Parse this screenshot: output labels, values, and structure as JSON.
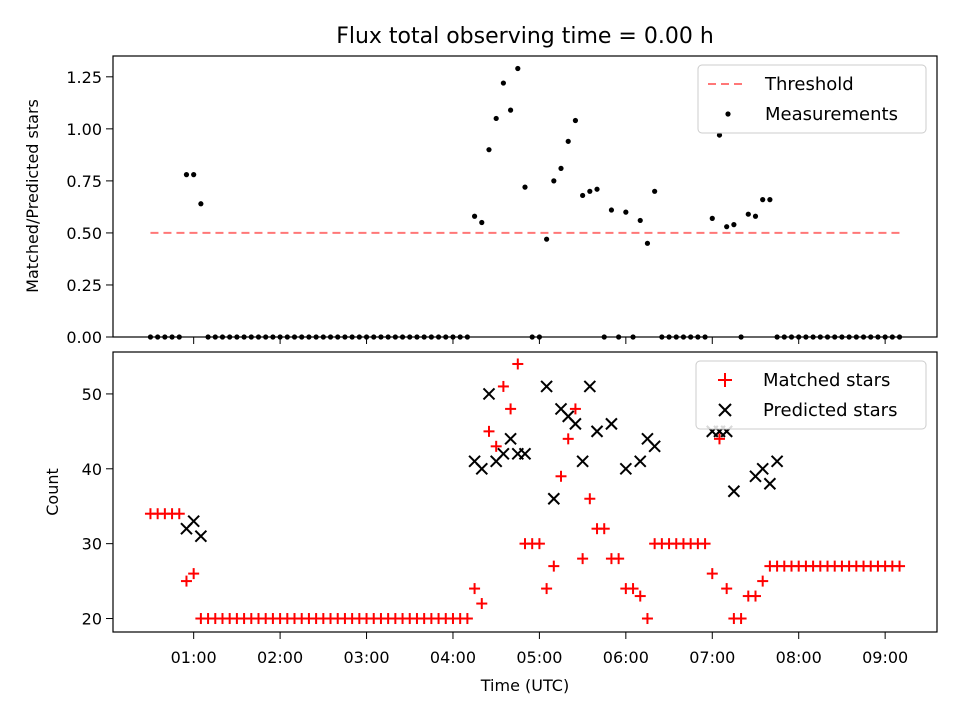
{
  "chart_data": [
    {
      "type": "scatter",
      "title": "Flux total observing time = 0.00 h",
      "xlabel": "",
      "ylabel": "Matched/Predicted stars",
      "ylim": [
        0,
        1.35
      ],
      "yticks": [
        "0.00",
        "0.25",
        "0.50",
        "0.75",
        "1.00",
        "1.25"
      ],
      "grid": false,
      "legend_position": "top-right",
      "series": [
        {
          "name": "Threshold",
          "style": "dashed-line",
          "color": "#ff7777",
          "x": [
            "00:30",
            "09:10"
          ],
          "y": [
            0.5,
            0.5
          ]
        },
        {
          "name": "Measurements",
          "style": "dot",
          "color": "#000000",
          "x": [
            "00:30",
            "00:35",
            "00:40",
            "00:45",
            "00:50",
            "00:55",
            "01:00",
            "01:05",
            "01:10",
            "01:15",
            "01:20",
            "01:25",
            "01:30",
            "01:35",
            "01:40",
            "01:45",
            "01:50",
            "01:55",
            "02:00",
            "02:05",
            "02:10",
            "02:15",
            "02:20",
            "02:25",
            "02:30",
            "02:35",
            "02:40",
            "02:45",
            "02:50",
            "02:55",
            "03:00",
            "03:05",
            "03:10",
            "03:15",
            "03:20",
            "03:25",
            "03:30",
            "03:35",
            "03:40",
            "03:45",
            "03:50",
            "03:55",
            "04:00",
            "04:05",
            "04:10",
            "04:15",
            "04:20",
            "04:25",
            "04:30",
            "04:35",
            "04:40",
            "04:45",
            "04:50",
            "04:55",
            "05:00",
            "05:05",
            "05:10",
            "05:15",
            "05:20",
            "05:25",
            "05:30",
            "05:35",
            "05:40",
            "05:45",
            "05:50",
            "05:55",
            "06:00",
            "06:05",
            "06:10",
            "06:15",
            "06:20",
            "06:25",
            "06:30",
            "06:35",
            "06:40",
            "06:45",
            "06:50",
            "06:55",
            "07:00",
            "07:05",
            "07:10",
            "07:15",
            "07:20",
            "07:25",
            "07:30",
            "07:35",
            "07:40",
            "07:45",
            "07:50",
            "07:55",
            "08:00",
            "08:05",
            "08:10",
            "08:15",
            "08:20",
            "08:25",
            "08:30",
            "08:35",
            "08:40",
            "08:45",
            "08:50",
            "08:55",
            "09:00",
            "09:05",
            "09:10"
          ],
          "y": [
            0,
            0,
            0,
            0,
            0,
            0.78,
            0.78,
            0.64,
            0,
            0,
            0,
            0,
            0,
            0,
            0,
            0,
            0,
            0,
            0,
            0,
            0,
            0,
            0,
            0,
            0,
            0,
            0,
            0,
            0,
            0,
            0,
            0,
            0,
            0,
            0,
            0,
            0,
            0,
            0,
            0,
            0,
            0,
            0,
            0,
            0,
            0.58,
            0.55,
            0.9,
            1.05,
            1.22,
            1.09,
            1.29,
            0.72,
            0,
            0,
            0.47,
            0.75,
            0.81,
            0.94,
            1.04,
            0.68,
            0.7,
            0.71,
            0,
            0.61,
            0,
            0.6,
            0,
            0.56,
            0.45,
            0.7,
            0,
            0,
            0,
            0,
            0,
            0,
            0,
            0.57,
            0.97,
            0.53,
            0.54,
            0,
            0.59,
            0.58,
            0.66,
            0.66,
            0,
            0,
            0,
            0,
            0,
            0,
            0,
            0,
            0,
            0,
            0,
            0,
            0,
            0,
            0,
            0,
            0,
            0
          ]
        }
      ]
    },
    {
      "type": "scatter",
      "title": "",
      "xlabel": "Time (UTC)",
      "ylabel": "Count",
      "ylim": [
        18.2,
        55.6
      ],
      "yticks": [
        "20",
        "30",
        "40",
        "50"
      ],
      "xticks": [
        "01:00",
        "02:00",
        "03:00",
        "04:00",
        "05:00",
        "06:00",
        "07:00",
        "08:00",
        "09:00"
      ],
      "grid": false,
      "legend_position": "top-right",
      "series": [
        {
          "name": "Matched stars",
          "style": "plus",
          "color": "#ff0000",
          "x": [
            "00:30",
            "00:35",
            "00:40",
            "00:45",
            "00:50",
            "00:55",
            "01:00",
            "01:05",
            "01:10",
            "01:15",
            "01:20",
            "01:25",
            "01:30",
            "01:35",
            "01:40",
            "01:45",
            "01:50",
            "01:55",
            "02:00",
            "02:05",
            "02:10",
            "02:15",
            "02:20",
            "02:25",
            "02:30",
            "02:35",
            "02:40",
            "02:45",
            "02:50",
            "02:55",
            "03:00",
            "03:05",
            "03:10",
            "03:15",
            "03:20",
            "03:25",
            "03:30",
            "03:35",
            "03:40",
            "03:45",
            "03:50",
            "03:55",
            "04:00",
            "04:05",
            "04:10",
            "04:15",
            "04:20",
            "04:25",
            "04:30",
            "04:35",
            "04:40",
            "04:45",
            "04:50",
            "04:55",
            "05:00",
            "05:05",
            "05:10",
            "05:15",
            "05:20",
            "05:25",
            "05:30",
            "05:35",
            "05:40",
            "05:45",
            "05:50",
            "05:55",
            "06:00",
            "06:05",
            "06:10",
            "06:15",
            "06:20",
            "06:25",
            "06:30",
            "06:35",
            "06:40",
            "06:45",
            "06:50",
            "06:55",
            "07:00",
            "07:05",
            "07:10",
            "07:15",
            "07:20",
            "07:25",
            "07:30",
            "07:35",
            "07:40",
            "07:45",
            "07:50",
            "07:55",
            "08:00",
            "08:05",
            "08:10",
            "08:15",
            "08:20",
            "08:25",
            "08:30",
            "08:35",
            "08:40",
            "08:45",
            "08:50",
            "08:55",
            "09:00",
            "09:05",
            "09:10"
          ],
          "y": [
            34,
            34,
            34,
            34,
            34,
            25,
            26,
            20,
            20,
            20,
            20,
            20,
            20,
            20,
            20,
            20,
            20,
            20,
            20,
            20,
            20,
            20,
            20,
            20,
            20,
            20,
            20,
            20,
            20,
            20,
            20,
            20,
            20,
            20,
            20,
            20,
            20,
            20,
            20,
            20,
            20,
            20,
            20,
            20,
            20,
            24,
            22,
            45,
            43,
            51,
            48,
            54,
            30,
            30,
            30,
            24,
            27,
            39,
            44,
            48,
            28,
            36,
            32,
            32,
            28,
            28,
            24,
            24,
            23,
            20,
            30,
            30,
            30,
            30,
            30,
            30,
            30,
            30,
            26,
            44,
            24,
            20,
            20,
            23,
            23,
            25,
            27,
            27,
            27,
            27,
            27,
            27,
            27,
            27,
            27,
            27,
            27,
            27,
            27,
            27,
            27,
            27,
            27,
            27,
            27
          ]
        },
        {
          "name": "Predicted stars",
          "style": "x",
          "color": "#000000",
          "x": [
            "00:55",
            "01:00",
            "01:05",
            "04:15",
            "04:20",
            "04:25",
            "04:30",
            "04:35",
            "04:40",
            "04:45",
            "04:50",
            "05:05",
            "05:10",
            "05:15",
            "05:20",
            "05:25",
            "05:30",
            "05:35",
            "05:40",
            "05:50",
            "06:00",
            "06:10",
            "06:15",
            "06:20",
            "07:00",
            "07:05",
            "07:10",
            "07:15",
            "07:30",
            "07:35",
            "07:40",
            "07:45"
          ],
          "y": [
            32,
            33,
            31,
            41,
            40,
            50,
            41,
            42,
            44,
            42,
            42,
            51,
            36,
            48,
            47,
            46,
            41,
            51,
            45,
            46,
            40,
            41,
            44,
            43,
            45,
            45,
            45,
            37,
            39,
            40,
            38,
            41
          ]
        }
      ]
    }
  ]
}
